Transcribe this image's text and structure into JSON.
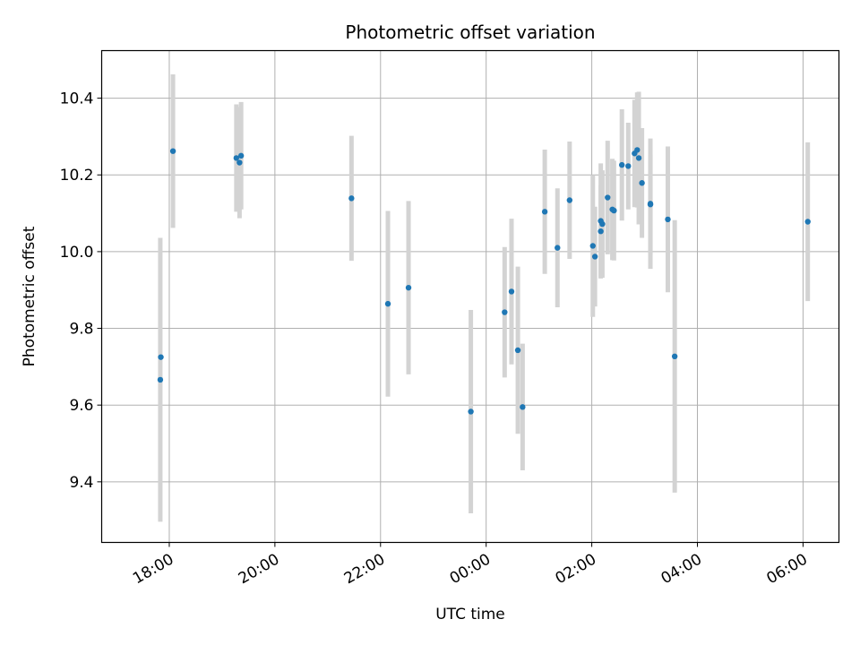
{
  "chart_data": {
    "type": "scatter",
    "title": "Photometric offset variation",
    "xlabel": "UTC time",
    "ylabel": "Photometric offset",
    "x_axis_kind": "time",
    "x_ticks": [
      "18:00",
      "20:00",
      "22:00",
      "00:00",
      "02:00",
      "04:00",
      "06:00"
    ],
    "x_tick_hours": [
      18,
      20,
      22,
      24,
      26,
      28,
      30
    ],
    "xlim": [
      16.72,
      30.68
    ],
    "y_ticks": [
      "9.4",
      "9.6",
      "9.8",
      "10.0",
      "10.2",
      "10.4"
    ],
    "y_tick_values": [
      9.4,
      9.6,
      9.8,
      10.0,
      10.2,
      10.4
    ],
    "ylim": [
      9.242,
      10.524
    ],
    "grid": true,
    "colors": {
      "marker": "#1f77b4",
      "errorbar": "#d3d3d3",
      "grid": "#b0b0b0",
      "axes": "#000000"
    },
    "points": [
      {
        "t": 17.83,
        "y": 9.666,
        "err": 0.37
      },
      {
        "t": 17.84,
        "y": 9.725,
        "err": 0
      },
      {
        "t": 18.07,
        "y": 10.262,
        "err": 0.2
      },
      {
        "t": 19.27,
        "y": 10.244,
        "err": 0.14
      },
      {
        "t": 19.33,
        "y": 10.232,
        "err": 0.145
      },
      {
        "t": 19.36,
        "y": 10.25,
        "err": 0.14
      },
      {
        "t": 21.45,
        "y": 10.139,
        "err": 0.163
      },
      {
        "t": 22.14,
        "y": 9.864,
        "err": 0.242
      },
      {
        "t": 22.53,
        "y": 9.906,
        "err": 0.226
      },
      {
        "t": 23.71,
        "y": 9.583,
        "err": 0.265
      },
      {
        "t": 24.35,
        "y": 9.842,
        "err": 0.17
      },
      {
        "t": 24.48,
        "y": 9.896,
        "err": 0.19
      },
      {
        "t": 24.6,
        "y": 9.743,
        "err": 0.218
      },
      {
        "t": 24.69,
        "y": 9.595,
        "err": 0.165
      },
      {
        "t": 25.11,
        "y": 10.104,
        "err": 0.162
      },
      {
        "t": 25.35,
        "y": 10.01,
        "err": 0.155
      },
      {
        "t": 25.58,
        "y": 10.134,
        "err": 0.153
      },
      {
        "t": 26.02,
        "y": 10.015,
        "err": 0.185
      },
      {
        "t": 26.06,
        "y": 9.987,
        "err": 0.13
      },
      {
        "t": 26.17,
        "y": 10.08,
        "err": 0.15
      },
      {
        "t": 26.17,
        "y": 10.053,
        "err": 0.12
      },
      {
        "t": 26.2,
        "y": 10.072,
        "err": 0.14
      },
      {
        "t": 26.3,
        "y": 10.141,
        "err": 0.148
      },
      {
        "t": 26.39,
        "y": 10.11,
        "err": 0.132
      },
      {
        "t": 26.42,
        "y": 10.107,
        "err": 0.13
      },
      {
        "t": 26.57,
        "y": 10.226,
        "err": 0.145
      },
      {
        "t": 26.69,
        "y": 10.223,
        "err": 0.113
      },
      {
        "t": 26.81,
        "y": 10.256,
        "err": 0.14
      },
      {
        "t": 26.86,
        "y": 10.265,
        "err": 0.15
      },
      {
        "t": 26.89,
        "y": 10.244,
        "err": 0.173
      },
      {
        "t": 26.95,
        "y": 10.179,
        "err": 0.143
      },
      {
        "t": 27.11,
        "y": 10.125,
        "err": 0.17
      },
      {
        "t": 27.11,
        "y": 10.123,
        "err": 0.13
      },
      {
        "t": 27.44,
        "y": 10.084,
        "err": 0.19
      },
      {
        "t": 27.57,
        "y": 9.727,
        "err": 0.355
      },
      {
        "t": 30.09,
        "y": 10.078,
        "err": 0.207
      }
    ]
  }
}
